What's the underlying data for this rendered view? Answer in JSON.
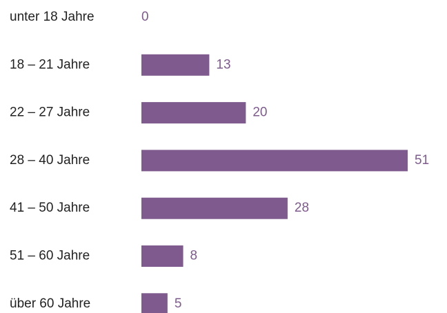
{
  "chart_data": {
    "type": "bar",
    "orientation": "horizontal",
    "categories": [
      "unter 18 Jahre",
      "18 – 21 Jahre",
      "22 – 27 Jahre",
      "28 – 40 Jahre",
      "41 – 50 Jahre",
      "51 – 60 Jahre",
      "über 60 Jahre"
    ],
    "values": [
      0,
      13,
      20,
      51,
      28,
      8,
      5
    ],
    "color": "#7e5a8e"
  }
}
